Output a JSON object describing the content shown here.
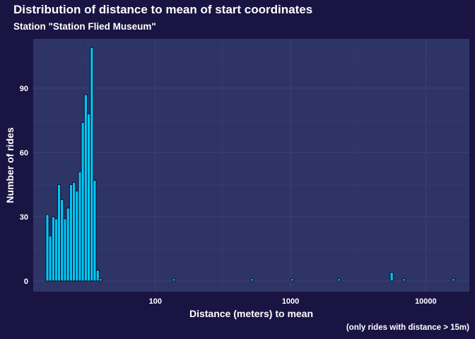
{
  "chart_data": {
    "type": "bar",
    "title": "Distribution of distance to mean of start coordinates",
    "subtitle": "Station \"Station Flied Museum\"",
    "caption": "(only rides with distance > 15m)",
    "xlabel": "Distance (meters) to mean",
    "ylabel": "Number of rides",
    "xscale": "log10",
    "xlim": [
      12.5,
      21000
    ],
    "ylim": [
      -5,
      113
    ],
    "x_ticks": [
      100,
      1000,
      10000
    ],
    "x_tick_labels": [
      "100",
      "1000",
      "10000"
    ],
    "y_ticks": [
      0,
      30,
      60,
      90
    ],
    "y_tick_labels": [
      "0",
      "30",
      "60",
      "90"
    ],
    "bin_width_log10": 0.022,
    "bins": [
      {
        "x": 15.9,
        "count": 31
      },
      {
        "x": 16.7,
        "count": 21
      },
      {
        "x": 17.6,
        "count": 30
      },
      {
        "x": 18.5,
        "count": 29
      },
      {
        "x": 19.4,
        "count": 45
      },
      {
        "x": 20.4,
        "count": 38
      },
      {
        "x": 21.5,
        "count": 29
      },
      {
        "x": 22.6,
        "count": 34
      },
      {
        "x": 23.8,
        "count": 45
      },
      {
        "x": 25.0,
        "count": 46
      },
      {
        "x": 26.3,
        "count": 42
      },
      {
        "x": 27.7,
        "count": 51
      },
      {
        "x": 29.1,
        "count": 74
      },
      {
        "x": 30.6,
        "count": 87
      },
      {
        "x": 32.2,
        "count": 78
      },
      {
        "x": 33.9,
        "count": 109
      },
      {
        "x": 35.6,
        "count": 47
      },
      {
        "x": 37.5,
        "count": 5
      },
      {
        "x": 39.4,
        "count": 1
      },
      {
        "x": 137,
        "count": 1
      },
      {
        "x": 520,
        "count": 1
      },
      {
        "x": 1030,
        "count": 1
      },
      {
        "x": 2280,
        "count": 1
      },
      {
        "x": 5600,
        "count": 4
      },
      {
        "x": 6900,
        "count": 1
      },
      {
        "x": 16000,
        "count": 1
      }
    ],
    "colors": {
      "page_background": "#1a1443",
      "panel_background": "#2e3466",
      "grid": "#3b4275",
      "bar_fill": "#00c8f5",
      "bar_outline": "#0d0d2a",
      "text": "#ffffff"
    }
  }
}
